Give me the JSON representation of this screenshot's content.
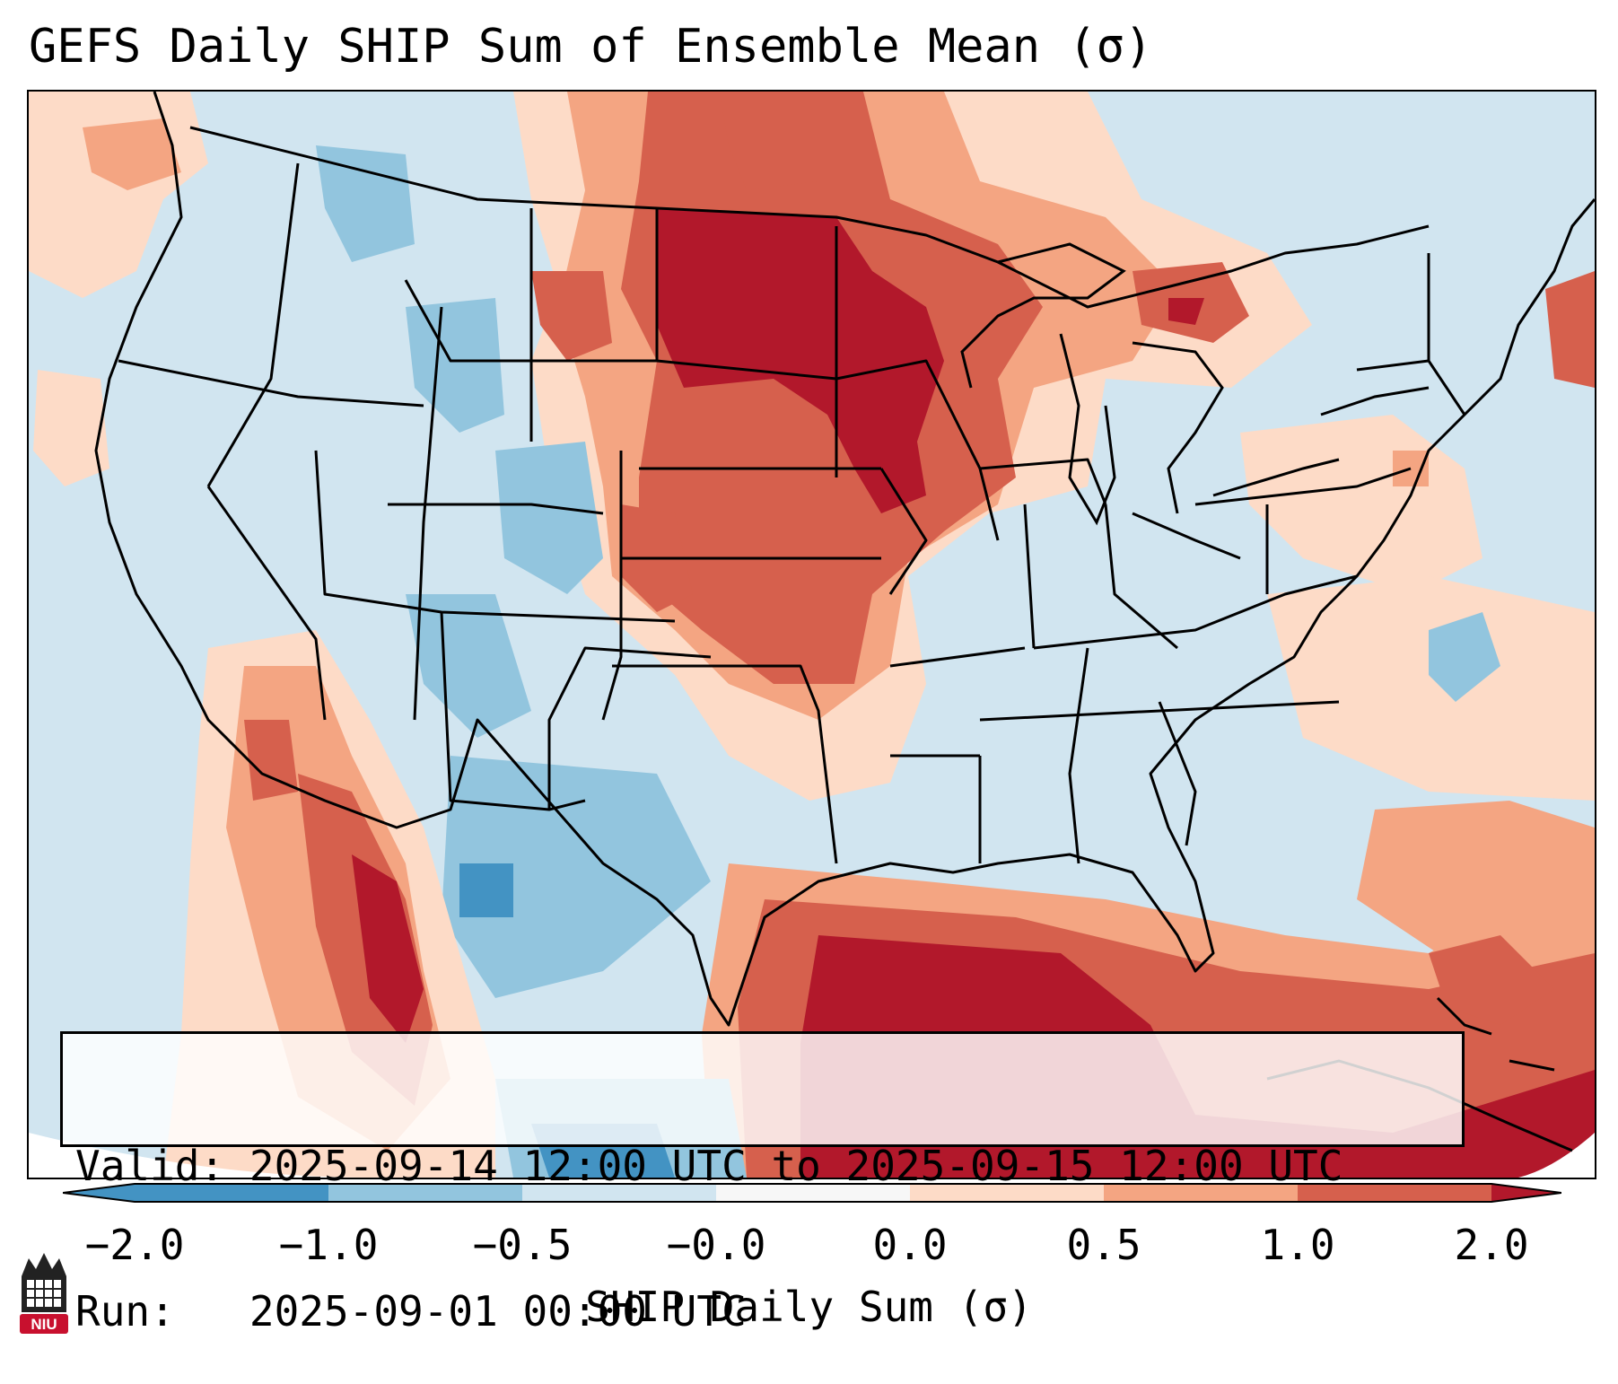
{
  "header": {
    "title": "GEFS Daily SHIP Sum of Ensemble Mean (σ)"
  },
  "info": {
    "valid_label": "Valid:",
    "valid_text": "2025-09-14 12:00 UTC to 2025-09-15 12:00 UTC",
    "run_label": "Run:",
    "run_text": "2025-09-01 00:00 UTC"
  },
  "colorbar": {
    "label": "SHIP Daily Sum (σ)",
    "ticks": [
      "−2.0",
      "−1.0",
      "−0.5",
      "−0.0",
      "0.0",
      "0.5",
      "1.0",
      "2.0"
    ],
    "colors": [
      "#4393c3",
      "#92c5de",
      "#d1e5f0",
      "#f7f7f7",
      "#fddbc7",
      "#f4a582",
      "#d6604d",
      "#b2182b"
    ]
  },
  "logo": {
    "text": "NIU",
    "brand_color": "#c8102e"
  },
  "map": {
    "field_colors": {
      "strong_neg": "#4393c3",
      "neg": "#92c5de",
      "weak_neg": "#d1e5f0",
      "weak_pos": "#fddbc7",
      "pos": "#f4a582",
      "mod_pos": "#d6604d",
      "strong_pos": "#b2182b"
    }
  }
}
